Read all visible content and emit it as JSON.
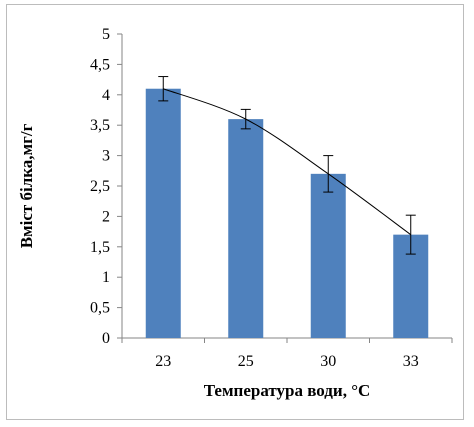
{
  "chart_data": {
    "type": "bar",
    "categories": [
      "23",
      "25",
      "30",
      "33"
    ],
    "series": [
      {
        "values": [
          4.1,
          3.6,
          2.7,
          1.7
        ],
        "error": [
          0.2,
          0.16,
          0.3,
          0.32
        ],
        "color": "#4f81bd"
      }
    ],
    "trendline": {
      "type": "polynomial",
      "color": "#000000"
    },
    "xlabel": "Температура води, °С",
    "ylabel": "Вміст білка,мг/г",
    "ylim": [
      0,
      5
    ],
    "yticks": [
      "0",
      "0,5",
      "1",
      "1,5",
      "2",
      "2,5",
      "3",
      "3,5",
      "4",
      "4,5",
      "5"
    ],
    "grid": false,
    "legend": "none"
  }
}
